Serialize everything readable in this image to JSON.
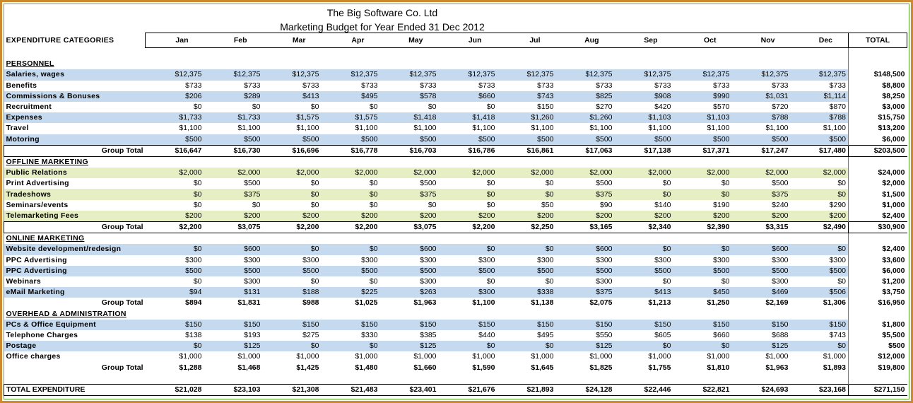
{
  "company": "The Big Software Co. Ltd",
  "report_title": "Marketing Budget for Year Ended 31 Dec 2012",
  "header": {
    "category_label": "EXPENDITURE CATEGORIES",
    "months": [
      "Jan",
      "Feb",
      "Mar",
      "Apr",
      "May",
      "Jun",
      "Jul",
      "Aug",
      "Sep",
      "Oct",
      "Nov",
      "Dec"
    ],
    "total_label": "TOTAL"
  },
  "group_total_label": "Group Total",
  "sections": [
    {
      "name": "PERSONNEL",
      "rows": [
        {
          "label": "Salaries, wages",
          "values": [
            "$12,375",
            "$12,375",
            "$12,375",
            "$12,375",
            "$12,375",
            "$12,375",
            "$12,375",
            "$12,375",
            "$12,375",
            "$12,375",
            "$12,375",
            "$12,375"
          ],
          "total": "$148,500"
        },
        {
          "label": "Benefits",
          "values": [
            "$733",
            "$733",
            "$733",
            "$733",
            "$733",
            "$733",
            "$733",
            "$733",
            "$733",
            "$733",
            "$733",
            "$733"
          ],
          "total": "$8,800"
        },
        {
          "label": "Commissions & Bonuses",
          "values": [
            "$206",
            "$289",
            "$413",
            "$495",
            "$578",
            "$660",
            "$743",
            "$825",
            "$908",
            "$990",
            "$1,031",
            "$1,114"
          ],
          "total": "$8,250"
        },
        {
          "label": "Recruitment",
          "values": [
            "$0",
            "$0",
            "$0",
            "$0",
            "$0",
            "$0",
            "$150",
            "$270",
            "$420",
            "$570",
            "$720",
            "$870"
          ],
          "total": "$3,000"
        },
        {
          "label": "Expenses",
          "values": [
            "$1,733",
            "$1,733",
            "$1,575",
            "$1,575",
            "$1,418",
            "$1,418",
            "$1,260",
            "$1,260",
            "$1,103",
            "$1,103",
            "$788",
            "$788"
          ],
          "total": "$15,750"
        },
        {
          "label": "Travel",
          "values": [
            "$1,100",
            "$1,100",
            "$1,100",
            "$1,100",
            "$1,100",
            "$1,100",
            "$1,100",
            "$1,100",
            "$1,100",
            "$1,100",
            "$1,100",
            "$1,100"
          ],
          "total": "$13,200"
        },
        {
          "label": "Motoring",
          "values": [
            "$500",
            "$500",
            "$500",
            "$500",
            "$500",
            "$500",
            "$500",
            "$500",
            "$500",
            "$500",
            "$500",
            "$500"
          ],
          "total": "$6,000"
        }
      ],
      "group_total": {
        "values": [
          "$16,647",
          "$16,730",
          "$16,696",
          "$16,778",
          "$16,703",
          "$16,786",
          "$16,861",
          "$17,063",
          "$17,138",
          "$17,371",
          "$17,247",
          "$17,480"
        ],
        "total": "$203,500"
      }
    },
    {
      "name": "OFFLINE MARKETING",
      "rows": [
        {
          "label": "Public Relations",
          "values": [
            "$2,000",
            "$2,000",
            "$2,000",
            "$2,000",
            "$2,000",
            "$2,000",
            "$2,000",
            "$2,000",
            "$2,000",
            "$2,000",
            "$2,000",
            "$2,000"
          ],
          "total": "$24,000"
        },
        {
          "label": "Print Advertising",
          "values": [
            "$0",
            "$500",
            "$0",
            "$0",
            "$500",
            "$0",
            "$0",
            "$500",
            "$0",
            "$0",
            "$500",
            "$0"
          ],
          "total": "$2,000"
        },
        {
          "label": "Tradeshows",
          "values": [
            "$0",
            "$375",
            "$0",
            "$0",
            "$375",
            "$0",
            "$0",
            "$375",
            "$0",
            "$0",
            "$375",
            "$0"
          ],
          "total": "$1,500"
        },
        {
          "label": "Seminars/events",
          "values": [
            "$0",
            "$0",
            "$0",
            "$0",
            "$0",
            "$0",
            "$50",
            "$90",
            "$140",
            "$190",
            "$240",
            "$290"
          ],
          "total": "$1,000"
        },
        {
          "label": "Telemarketing Fees",
          "values": [
            "$200",
            "$200",
            "$200",
            "$200",
            "$200",
            "$200",
            "$200",
            "$200",
            "$200",
            "$200",
            "$200",
            "$200"
          ],
          "total": "$2,400"
        }
      ],
      "group_total": {
        "values": [
          "$2,200",
          "$3,075",
          "$2,200",
          "$2,200",
          "$3,075",
          "$2,200",
          "$2,250",
          "$3,165",
          "$2,340",
          "$2,390",
          "$3,315",
          "$2,490"
        ],
        "total": "$30,900"
      }
    },
    {
      "name": "ONLINE MARKETING",
      "rows": [
        {
          "label": "Website development/redesign",
          "values": [
            "$0",
            "$600",
            "$0",
            "$0",
            "$600",
            "$0",
            "$0",
            "$600",
            "$0",
            "$0",
            "$600",
            "$0"
          ],
          "total": "$2,400"
        },
        {
          "label": "PPC Advertising",
          "values": [
            "$300",
            "$300",
            "$300",
            "$300",
            "$300",
            "$300",
            "$300",
            "$300",
            "$300",
            "$300",
            "$300",
            "$300"
          ],
          "total": "$3,600"
        },
        {
          "label": "PPC Advertising",
          "values": [
            "$500",
            "$500",
            "$500",
            "$500",
            "$500",
            "$500",
            "$500",
            "$500",
            "$500",
            "$500",
            "$500",
            "$500"
          ],
          "total": "$6,000"
        },
        {
          "label": "Webinars",
          "values": [
            "$0",
            "$300",
            "$0",
            "$0",
            "$300",
            "$0",
            "$0",
            "$300",
            "$0",
            "$0",
            "$300",
            "$0"
          ],
          "total": "$1,200"
        },
        {
          "label": "eMail Marketing",
          "values": [
            "$94",
            "$131",
            "$188",
            "$225",
            "$263",
            "$300",
            "$338",
            "$375",
            "$413",
            "$450",
            "$469",
            "$506"
          ],
          "total": "$3,750"
        }
      ],
      "group_total": {
        "values": [
          "$894",
          "$1,831",
          "$988",
          "$1,025",
          "$1,963",
          "$1,100",
          "$1,138",
          "$2,075",
          "$1,213",
          "$1,250",
          "$2,169",
          "$1,306"
        ],
        "total": "$16,950"
      }
    },
    {
      "name": "OVERHEAD & ADMINISTRATION",
      "rows": [
        {
          "label": "PCs & Office Equipment",
          "values": [
            "$150",
            "$150",
            "$150",
            "$150",
            "$150",
            "$150",
            "$150",
            "$150",
            "$150",
            "$150",
            "$150",
            "$150"
          ],
          "total": "$1,800"
        },
        {
          "label": "Telephone Charges",
          "values": [
            "$138",
            "$193",
            "$275",
            "$330",
            "$385",
            "$440",
            "$495",
            "$550",
            "$605",
            "$660",
            "$688",
            "$743"
          ],
          "total": "$5,500"
        },
        {
          "label": "Postage",
          "values": [
            "$0",
            "$125",
            "$0",
            "$0",
            "$125",
            "$0",
            "$0",
            "$125",
            "$0",
            "$0",
            "$125",
            "$0"
          ],
          "total": "$500"
        },
        {
          "label": "Office charges",
          "values": [
            "$1,000",
            "$1,000",
            "$1,000",
            "$1,000",
            "$1,000",
            "$1,000",
            "$1,000",
            "$1,000",
            "$1,000",
            "$1,000",
            "$1,000",
            "$1,000"
          ],
          "total": "$12,000"
        }
      ],
      "group_total": {
        "values": [
          "$1,288",
          "$1,468",
          "$1,425",
          "$1,480",
          "$1,660",
          "$1,590",
          "$1,645",
          "$1,825",
          "$1,755",
          "$1,810",
          "$1,963",
          "$1,893"
        ],
        "total": "$19,800"
      }
    }
  ],
  "total_expenditure": {
    "label": "TOTAL EXPENDITURE",
    "values": [
      "$21,028",
      "$23,103",
      "$21,308",
      "$21,483",
      "$23,401",
      "$21,676",
      "$21,893",
      "$24,128",
      "$22,446",
      "$22,821",
      "$24,693",
      "$23,168"
    ],
    "total": "$271,150"
  },
  "colors": {
    "row_blue": "#c5d9ef",
    "row_green": "#e6efc4",
    "outer_border": "#cc8a2e",
    "inner_border": "#5aa82e"
  }
}
